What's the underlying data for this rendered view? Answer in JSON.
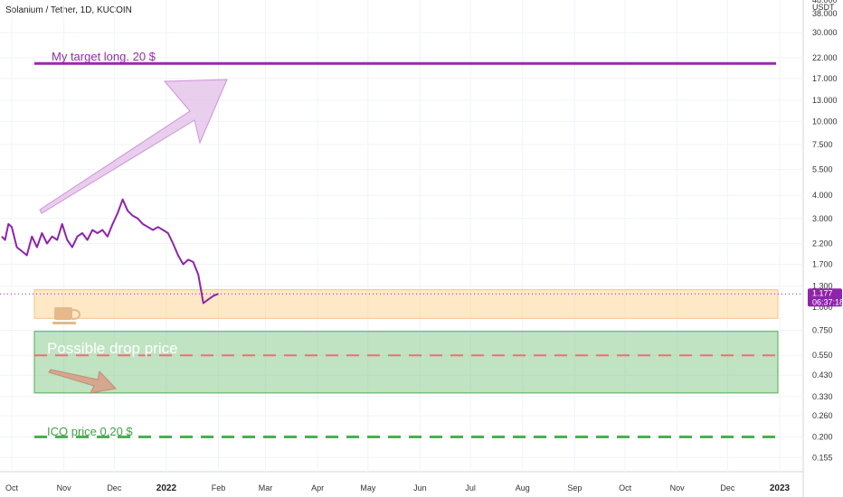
{
  "chart_data": {
    "type": "line",
    "title": "Solanium / Tether, 1D, KUCOIN",
    "currency": "USDT",
    "y_scale": "log",
    "ylim": [
      0.13,
      45
    ],
    "y_ticks": [
      "30.000",
      "22.000",
      "17.000",
      "13.000",
      "10.000",
      "7.500",
      "5.500",
      "4.000",
      "3.000",
      "2.200",
      "1.700",
      "1.300",
      "0.750",
      "0.550",
      "0.430",
      "0.330",
      "0.260",
      "0.200",
      "0.155"
    ],
    "y_ticks_partial": [
      "48.000",
      "38.000",
      "1.000"
    ],
    "x_ticks": [
      "Oct",
      "Nov",
      "Dec",
      "2022",
      "Feb",
      "Mar",
      "Apr",
      "May",
      "Jun",
      "Jul",
      "Aug",
      "Sep",
      "Oct",
      "Nov",
      "Dec",
      "2023"
    ],
    "xlim": [
      "2021-09-24",
      "2023-01-15"
    ],
    "series": [
      {
        "color": "#8e24aa",
        "x": [
          "2021-09-25",
          "2021-09-27",
          "2021-09-29",
          "2021-10-01",
          "2021-10-04",
          "2021-10-07",
          "2021-10-10",
          "2021-10-13",
          "2021-10-16",
          "2021-10-19",
          "2021-10-22",
          "2021-10-25",
          "2021-10-28",
          "2021-10-31",
          "2021-11-03",
          "2021-11-06",
          "2021-11-09",
          "2021-11-12",
          "2021-11-15",
          "2021-11-18",
          "2021-11-21",
          "2021-11-24",
          "2021-11-27",
          "2021-11-30",
          "2021-12-03",
          "2021-12-06",
          "2021-12-09",
          "2021-12-12",
          "2021-12-15",
          "2021-12-18",
          "2021-12-21",
          "2021-12-24",
          "2021-12-27",
          "2021-12-30",
          "2022-01-02",
          "2022-01-05",
          "2022-01-08",
          "2022-01-11",
          "2022-01-14",
          "2022-01-17",
          "2022-01-20",
          "2022-01-23",
          "2022-01-26",
          "2022-01-29",
          "2022-02-01"
        ],
        "y": [
          2.4,
          2.3,
          2.8,
          2.7,
          2.1,
          2.0,
          1.9,
          2.4,
          2.1,
          2.5,
          2.2,
          2.4,
          2.3,
          2.8,
          2.3,
          2.1,
          2.4,
          2.5,
          2.3,
          2.6,
          2.5,
          2.6,
          2.4,
          2.8,
          3.2,
          3.8,
          3.3,
          3.1,
          3.0,
          2.8,
          2.7,
          2.6,
          2.7,
          2.6,
          2.5,
          2.2,
          1.9,
          1.7,
          1.8,
          1.75,
          1.5,
          1.05,
          1.1,
          1.15,
          1.18
        ]
      }
    ],
    "last_price": "1.177",
    "countdown": "06:37:18",
    "annotations": [
      {
        "text": "My target long. 20 $",
        "level": 20.5,
        "color": "#9c27b0",
        "style": "solid"
      },
      {
        "text": "Possible drop price",
        "level": 0.55,
        "color": "#e57373",
        "style": "dashed"
      },
      {
        "text": "ICO price 0,20 $",
        "level": 0.2,
        "color": "#4caf50",
        "style": "dashed"
      }
    ],
    "zones": [
      {
        "from": 0.87,
        "to": 1.24,
        "color": "#ffcc80"
      },
      {
        "from": 0.345,
        "to": 0.74,
        "color": "#81c784"
      }
    ]
  }
}
